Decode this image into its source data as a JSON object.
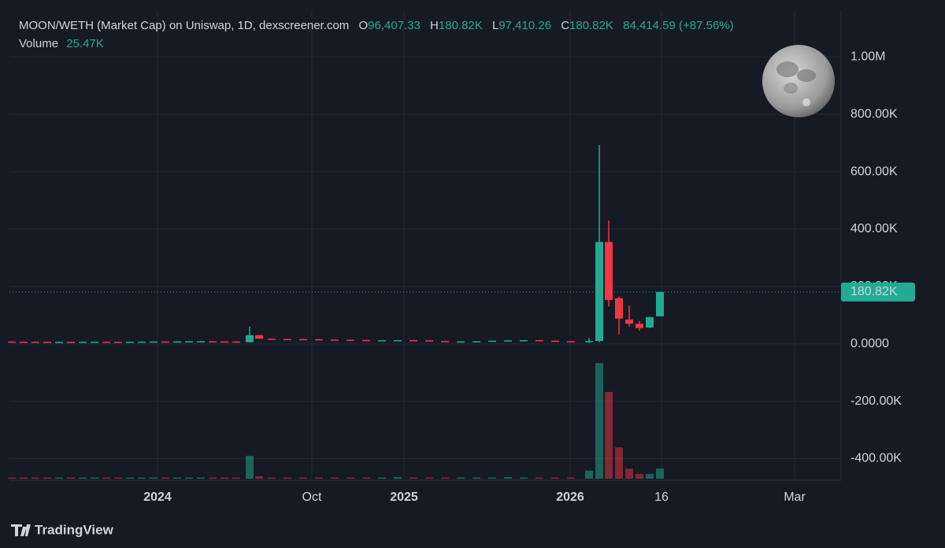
{
  "chart_data": {
    "type": "candlestick",
    "header": {
      "title": "MOON/WETH (Market Cap) on Uniswap, 1D, dexscreener.com",
      "o_key": "O",
      "o_val": "96,407.33",
      "h_key": "H",
      "h_val": "180.82K",
      "l_key": "L",
      "l_val": "97,410.26",
      "c_key": "C",
      "c_val": "180.82K",
      "change": "84,414.59 (+87.56%)",
      "volume_key": "Volume",
      "volume_val": "25.47K"
    },
    "brand": "TradingView",
    "up_color": "#22ab94",
    "down_color": "#f23645",
    "xlim": [
      12,
      1068
    ],
    "xticks": [
      {
        "value": 200,
        "label": "2024"
      },
      {
        "value": 396,
        "label": "Oct"
      },
      {
        "value": 513,
        "label": "2025"
      },
      {
        "value": 724,
        "label": "2026"
      },
      {
        "value": 840,
        "label": "16"
      },
      {
        "value": 1009,
        "label": "Mar"
      }
    ],
    "ylim": [
      -470000,
      1160000
    ],
    "yticks": [
      {
        "value": 1000000,
        "label": "1.00M"
      },
      {
        "value": 800000,
        "label": "800.00K"
      },
      {
        "value": 600000,
        "label": "600.00K"
      },
      {
        "value": 400000,
        "label": "400.00K"
      },
      {
        "value": 200000,
        "label": "200.00K"
      },
      {
        "value": 0,
        "label": "0.0000"
      },
      {
        "value": -200000,
        "label": "-200.00K"
      },
      {
        "value": -400000,
        "label": "-400.00K"
      }
    ],
    "volume_ylim": [
      0,
      300000
    ],
    "grid": true,
    "last_price": {
      "value": 180820,
      "label": "180.82K"
    },
    "x": [
      15,
      30,
      45,
      60,
      75,
      90,
      105,
      120,
      135,
      150,
      165,
      180,
      195,
      210,
      225,
      240,
      255,
      270,
      285,
      300,
      317,
      329,
      345,
      365,
      385,
      405,
      425,
      445,
      465,
      485,
      505,
      525,
      545,
      565,
      585,
      605,
      625,
      645,
      665,
      685,
      705,
      725,
      748,
      761,
      773,
      786,
      799,
      812,
      825,
      838
    ],
    "open": [
      8000,
      7500,
      7200,
      7000,
      6800,
      7000,
      6900,
      7200,
      7400,
      7000,
      6800,
      7200,
      7800,
      8200,
      8000,
      8500,
      8800,
      9000,
      8600,
      8200,
      6000,
      30000,
      18000,
      17000,
      16500,
      16000,
      15000,
      14500,
      13500,
      12000,
      12500,
      13000,
      12000,
      10000,
      8000,
      8500,
      9000,
      11000,
      12000,
      13000,
      11000,
      9000,
      6000,
      10000,
      355000,
      159000,
      85000,
      70000,
      57000,
      96407.33
    ],
    "high": [
      9000,
      8500,
      8200,
      8000,
      8000,
      8000,
      8200,
      8400,
      8400,
      8000,
      8200,
      8800,
      9200,
      9200,
      9500,
      9800,
      10000,
      10000,
      9600,
      9200,
      60000,
      31000,
      19000,
      18000,
      17500,
      17000,
      16000,
      15500,
      14500,
      13000,
      13500,
      14000,
      13000,
      11000,
      9000,
      9500,
      10000,
      12000,
      13000,
      14000,
      12000,
      10000,
      20000,
      693000,
      430000,
      165000,
      134000,
      80000,
      95000,
      180820
    ],
    "low": [
      6500,
      6200,
      6000,
      5800,
      5800,
      5900,
      5900,
      6200,
      6000,
      5800,
      5800,
      6200,
      6800,
      7000,
      7000,
      7500,
      7800,
      7600,
      7200,
      5000,
      5000,
      17000,
      16000,
      15500,
      15000,
      14000,
      13500,
      12500,
      11000,
      11000,
      11500,
      11000,
      9000,
      7000,
      7000,
      7500,
      8000,
      10000,
      11000,
      10000,
      8000,
      5000,
      3000,
      5000,
      130000,
      33000,
      60000,
      45000,
      55000,
      97410.26
    ],
    "close": [
      7500,
      7200,
      7000,
      6800,
      7000,
      6900,
      7200,
      7400,
      7000,
      6800,
      7200,
      7800,
      8200,
      8000,
      8500,
      8800,
      9000,
      8600,
      8200,
      6000,
      30000,
      18000,
      17000,
      16500,
      16000,
      15000,
      14500,
      13500,
      12000,
      12500,
      13000,
      12000,
      10000,
      8000,
      8500,
      9000,
      11000,
      12000,
      13000,
      11000,
      9000,
      6000,
      10000,
      355000,
      153000,
      88000,
      70000,
      55000,
      93000,
      180820
    ],
    "volume": [
      3000,
      3000,
      3000,
      3000,
      3000,
      3000,
      3000,
      3000,
      3000,
      3000,
      3000,
      3000,
      3000,
      3000,
      3000,
      3000,
      3000,
      3000,
      3000,
      3000,
      57000,
      6000,
      3000,
      3000,
      3000,
      3000,
      3000,
      3000,
      3000,
      3000,
      4000,
      3000,
      3000,
      3000,
      3000,
      3000,
      3000,
      4000,
      3000,
      3000,
      3000,
      3000,
      20000,
      288000,
      216000,
      78000,
      25000,
      12000,
      12000,
      25470
    ]
  }
}
